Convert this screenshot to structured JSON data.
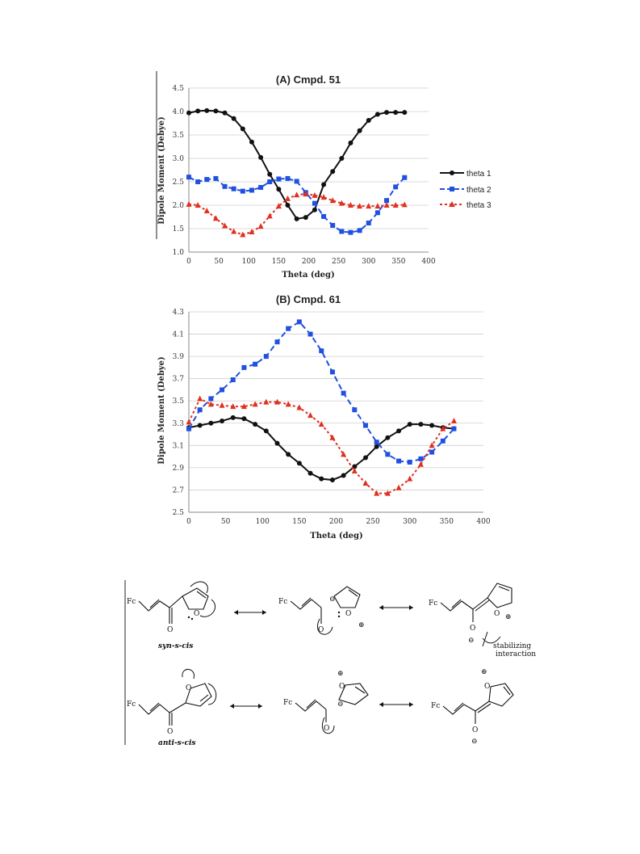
{
  "chart_data": [
    {
      "type": "line",
      "title": "(A) Cmpd. 51",
      "xlabel": "Theta (deg)",
      "ylabel": "Dipole Moment (Debye)",
      "xlim": [
        0,
        400
      ],
      "ylim": [
        1.0,
        4.5
      ],
      "xticks": [
        0,
        50,
        100,
        150,
        200,
        250,
        300,
        350,
        400
      ],
      "yticks": [
        1.0,
        1.5,
        2.0,
        2.5,
        3.0,
        3.5,
        4.0,
        4.5
      ],
      "ytick_labels": [
        "1.0",
        "1.5",
        "2.0",
        "2.5",
        "3.0",
        "3.5",
        "4.0",
        "4.5"
      ],
      "grid": true,
      "legend_position": "right",
      "x": [
        0,
        15,
        30,
        45,
        60,
        75,
        90,
        105,
        120,
        135,
        150,
        165,
        180,
        195,
        210,
        225,
        240,
        255,
        270,
        285,
        300,
        315,
        330,
        345,
        360
      ],
      "series": [
        {
          "name": "theta 1",
          "color": "#111111",
          "marker": "circle",
          "dashed": false,
          "values": [
            3.97,
            4.01,
            4.02,
            4.01,
            3.97,
            3.85,
            3.63,
            3.35,
            3.02,
            2.66,
            2.34,
            2.0,
            1.71,
            1.74,
            1.9,
            2.44,
            2.72,
            3.0,
            3.33,
            3.59,
            3.81,
            3.94,
            3.98,
            3.98,
            3.98
          ]
        },
        {
          "name": "theta 2",
          "color": "#2050e0",
          "marker": "square",
          "dashed": true,
          "values": [
            2.6,
            2.5,
            2.55,
            2.57,
            2.4,
            2.35,
            2.3,
            2.32,
            2.38,
            2.5,
            2.56,
            2.57,
            2.51,
            2.27,
            2.04,
            1.76,
            1.57,
            1.44,
            1.42,
            1.46,
            1.62,
            1.84,
            2.1,
            2.39,
            2.59
          ]
        },
        {
          "name": "theta 3",
          "color": "#e03020",
          "marker": "triangle",
          "dashed": true,
          "values": [
            2.02,
            2.0,
            1.88,
            1.72,
            1.56,
            1.44,
            1.37,
            1.43,
            1.55,
            1.77,
            1.98,
            2.14,
            2.22,
            2.24,
            2.21,
            2.17,
            2.1,
            2.04,
            2.0,
            1.98,
            1.98,
            1.98,
            2.0,
            2.0,
            2.01
          ]
        }
      ]
    },
    {
      "type": "line",
      "title": "(B) Cmpd. 61",
      "xlabel": "Theta (deg)",
      "ylabel": "Dipole Moment (Debye)",
      "xlim": [
        0,
        400
      ],
      "ylim": [
        2.5,
        4.3
      ],
      "xticks": [
        0,
        50,
        100,
        150,
        200,
        250,
        300,
        350,
        400
      ],
      "yticks": [
        2.5,
        2.7,
        2.9,
        3.1,
        3.3,
        3.5,
        3.7,
        3.9,
        4.1,
        4.3
      ],
      "ytick_labels": [
        "2.5",
        "2.7",
        "2.9",
        "3.1",
        "3.3",
        "3.5",
        "3.7",
        "3.9",
        "4.1",
        "4.3"
      ],
      "grid": true,
      "legend_position": "none",
      "x": [
        0,
        15,
        30,
        45,
        60,
        75,
        90,
        105,
        120,
        135,
        150,
        165,
        180,
        195,
        210,
        225,
        240,
        255,
        270,
        285,
        300,
        315,
        330,
        345,
        360
      ],
      "series": [
        {
          "name": "theta 1",
          "color": "#111111",
          "marker": "circle",
          "dashed": false,
          "values": [
            3.26,
            3.28,
            3.3,
            3.32,
            3.35,
            3.34,
            3.29,
            3.23,
            3.12,
            3.02,
            2.94,
            2.85,
            2.8,
            2.79,
            2.83,
            2.91,
            2.99,
            3.09,
            3.17,
            3.23,
            3.29,
            3.29,
            3.28,
            3.26,
            3.25
          ]
        },
        {
          "name": "theta 2",
          "color": "#2050e0",
          "marker": "square",
          "dashed": true,
          "values": [
            3.25,
            3.42,
            3.52,
            3.6,
            3.69,
            3.8,
            3.83,
            3.9,
            4.03,
            4.15,
            4.21,
            4.1,
            3.95,
            3.76,
            3.57,
            3.42,
            3.28,
            3.13,
            3.02,
            2.96,
            2.95,
            2.98,
            3.04,
            3.14,
            3.25
          ]
        },
        {
          "name": "theta 3",
          "color": "#e03020",
          "marker": "triangle",
          "dashed": true,
          "values": [
            3.31,
            3.52,
            3.47,
            3.46,
            3.45,
            3.45,
            3.47,
            3.49,
            3.49,
            3.47,
            3.44,
            3.37,
            3.29,
            3.17,
            3.02,
            2.87,
            2.76,
            2.67,
            2.67,
            2.72,
            2.8,
            2.93,
            3.1,
            3.25,
            3.32
          ]
        }
      ]
    }
  ],
  "scheme": {
    "fc_label": "Fc",
    "o_label": "O",
    "plus": "⊕",
    "minus": "⊖",
    "syn_label": "syn-s-cis",
    "anti_label": "anti-s-cis",
    "stabilizing_line1": "stabilizing",
    "stabilizing_line2": "interaction"
  }
}
